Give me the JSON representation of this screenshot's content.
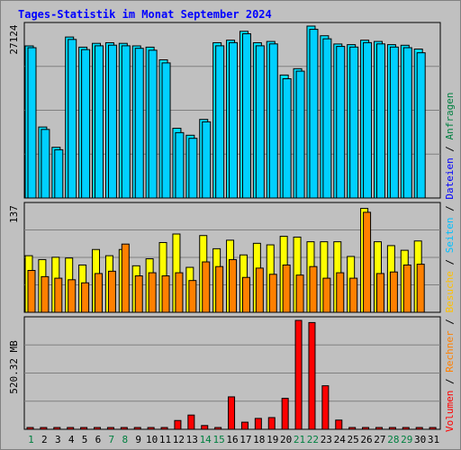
{
  "title": "Tages-Statistik im Monat September 2024",
  "colors": {
    "anfragen": "#00e0ff",
    "dateien": "#0080ff",
    "seiten": "#00d0ff",
    "besuche": "#ffff00",
    "rechner": "#ff8000",
    "volumen": "#ff0000",
    "weekday_label": "#000000",
    "weekend_label": "#008040",
    "panel_bg": "#c0c0c0",
    "grid": "#808080"
  },
  "legend": [
    {
      "label": "Anfragen",
      "color": "#008040"
    },
    {
      "label": "Dateien",
      "color": "#0000ff"
    },
    {
      "label": "Seiten",
      "color": "#00c0ff"
    },
    {
      "label": "Besuche",
      "color": "#ffc000"
    },
    {
      "label": "Rechner",
      "color": "#ff8000"
    },
    {
      "label": "Volumen",
      "color": "#ff0000"
    }
  ],
  "chart_data": [
    {
      "type": "bar",
      "panel": "hits",
      "ylabel_max": "27124",
      "ylim": [
        0,
        27124
      ],
      "categories": [
        "1",
        "2",
        "3",
        "4",
        "5",
        "6",
        "7",
        "8",
        "9",
        "10",
        "11",
        "12",
        "13",
        "14",
        "15",
        "16",
        "17",
        "18",
        "19",
        "20",
        "21",
        "22",
        "23",
        "24",
        "25",
        "26",
        "27",
        "28",
        "29",
        "30",
        "31"
      ],
      "weekend": [
        1,
        7,
        8,
        14,
        15,
        21,
        22,
        28,
        29
      ],
      "series": [
        {
          "name": "Anfragen",
          "values": [
            24000,
            11200,
            8000,
            25400,
            23800,
            24400,
            24500,
            24400,
            24000,
            23800,
            21800,
            11000,
            9900,
            12400,
            24500,
            24900,
            26300,
            24500,
            24700,
            19400,
            20400,
            27124,
            25600,
            24300,
            24200,
            24900,
            24700,
            24200,
            24100,
            23500,
            0
          ]
        },
        {
          "name": "Dateien",
          "values": [
            24000,
            11100,
            7900,
            25300,
            23700,
            24300,
            24400,
            24300,
            23900,
            23600,
            21600,
            10600,
            9700,
            12300,
            24300,
            24800,
            26200,
            24300,
            24600,
            19100,
            20300,
            26900,
            25400,
            24200,
            24100,
            24800,
            24600,
            24100,
            24000,
            23200,
            0
          ]
        }
      ]
    },
    {
      "type": "bar",
      "panel": "visits",
      "ylabel_max": "137",
      "ylim": [
        0,
        137
      ],
      "categories": [
        "1",
        "2",
        "3",
        "4",
        "5",
        "6",
        "7",
        "8",
        "9",
        "10",
        "11",
        "12",
        "13",
        "14",
        "15",
        "16",
        "17",
        "18",
        "19",
        "20",
        "21",
        "22",
        "23",
        "24",
        "25",
        "26",
        "27",
        "28",
        "29",
        "30",
        "31"
      ],
      "series": [
        {
          "name": "Besuche",
          "values": [
            73,
            68,
            71,
            70,
            61,
            81,
            73,
            81,
            60,
            69,
            90,
            101,
            58,
            99,
            82,
            93,
            74,
            89,
            87,
            98,
            97,
            91,
            91,
            91,
            72,
            134,
            91,
            86,
            80,
            92,
            0
          ]
        },
        {
          "name": "Rechner",
          "values": [
            54,
            46,
            44,
            42,
            38,
            50,
            53,
            88,
            47,
            51,
            47,
            51,
            41,
            65,
            59,
            68,
            45,
            57,
            49,
            61,
            48,
            59,
            44,
            51,
            44,
            129,
            50,
            52,
            61,
            62,
            0
          ]
        }
      ]
    },
    {
      "type": "bar",
      "panel": "volume",
      "ylabel_max": "520.32 MB",
      "ylim": [
        0,
        520.32
      ],
      "categories": [
        "1",
        "2",
        "3",
        "4",
        "5",
        "6",
        "7",
        "8",
        "9",
        "10",
        "11",
        "12",
        "13",
        "14",
        "15",
        "16",
        "17",
        "18",
        "19",
        "20",
        "21",
        "22",
        "23",
        "24",
        "25",
        "26",
        "27",
        "28",
        "29",
        "30",
        "31"
      ],
      "series": [
        {
          "name": "Volumen",
          "values": [
            4,
            4,
            4,
            4,
            4,
            4,
            4,
            4,
            4,
            4,
            4,
            42,
            68,
            18,
            4,
            155,
            34,
            52,
            56,
            148,
            520.32,
            510,
            208,
            44,
            4,
            4,
            4,
            4,
            4,
            4,
            4
          ]
        }
      ]
    }
  ]
}
